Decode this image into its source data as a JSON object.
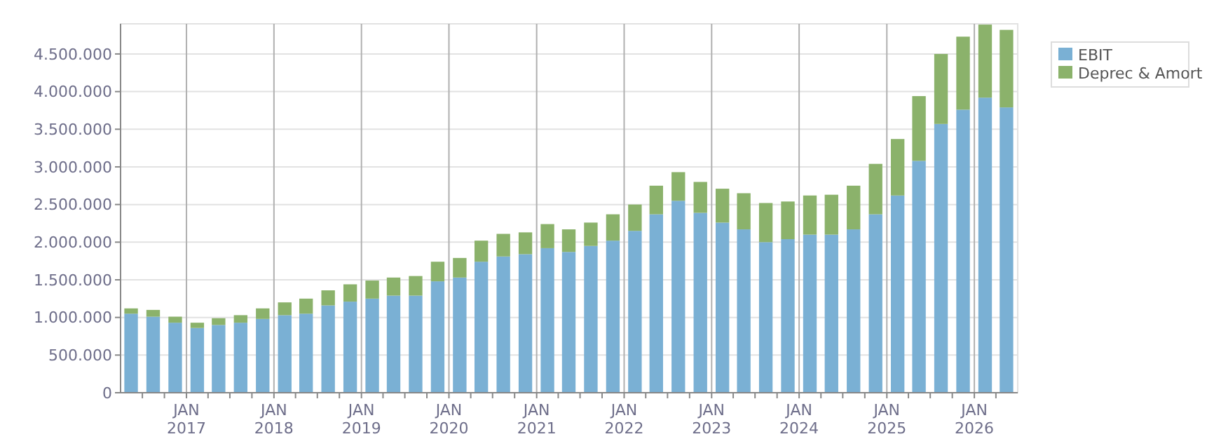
{
  "chart_data": {
    "type": "bar",
    "stacked": true,
    "x": [
      "2016-05-15",
      "2016-08-15",
      "2016-11-15",
      "2017-02-15",
      "2017-05-15",
      "2017-08-15",
      "2017-11-15",
      "2018-02-15",
      "2018-05-15",
      "2018-08-15",
      "2018-11-15",
      "2019-02-15",
      "2019-05-15",
      "2019-08-15",
      "2019-11-15",
      "2020-02-15",
      "2020-05-15",
      "2020-08-15",
      "2020-11-15",
      "2021-02-15",
      "2021-05-15",
      "2021-08-15",
      "2021-11-15",
      "2022-02-15",
      "2022-05-15",
      "2022-08-15",
      "2022-11-15",
      "2023-02-15",
      "2023-05-15",
      "2023-08-15",
      "2023-11-15",
      "2024-02-15",
      "2024-05-15",
      "2024-08-15",
      "2024-11-15",
      "2025-02-15",
      "2025-05-15",
      "2025-08-15",
      "2025-11-15",
      "2026-02-15",
      "2026-05-15"
    ],
    "series": [
      {
        "name": "EBIT",
        "color": "#7ab0d4",
        "values": [
          1050000,
          1010000,
          930000,
          860000,
          900000,
          930000,
          980000,
          1030000,
          1050000,
          1160000,
          1210000,
          1250000,
          1290000,
          1290000,
          1480000,
          1530000,
          1740000,
          1810000,
          1840000,
          1920000,
          1870000,
          1950000,
          2020000,
          2150000,
          2370000,
          2550000,
          2390000,
          2260000,
          2170000,
          2000000,
          2040000,
          2100000,
          2100000,
          2170000,
          2370000,
          2620000,
          3080000,
          3570000,
          3760000,
          3920000,
          3790000
        ]
      },
      {
        "name": "Deprec & Amort",
        "color": "#8bb26b",
        "values": [
          70000,
          90000,
          80000,
          70000,
          90000,
          100000,
          140000,
          170000,
          200000,
          200000,
          230000,
          240000,
          240000,
          260000,
          260000,
          260000,
          280000,
          300000,
          290000,
          320000,
          300000,
          310000,
          350000,
          350000,
          380000,
          380000,
          410000,
          450000,
          480000,
          520000,
          500000,
          520000,
          530000,
          580000,
          670000,
          750000,
          860000,
          930000,
          970000,
          970000,
          1030000
        ]
      }
    ],
    "xlim": [
      "2016-04-01",
      "2026-07-01"
    ],
    "xticks": [
      {
        "value": "2016-07-01",
        "label": null
      },
      {
        "value": "2016-10-01",
        "label": null
      },
      {
        "value": "2017-01-01",
        "label": "JAN\n2017"
      },
      {
        "value": "2017-04-01",
        "label": null
      },
      {
        "value": "2017-07-01",
        "label": null
      },
      {
        "value": "2017-10-01",
        "label": null
      },
      {
        "value": "2018-01-01",
        "label": "JAN\n2018"
      },
      {
        "value": "2018-04-01",
        "label": null
      },
      {
        "value": "2018-07-01",
        "label": null
      },
      {
        "value": "2018-10-01",
        "label": null
      },
      {
        "value": "2019-01-01",
        "label": "JAN\n2019"
      },
      {
        "value": "2019-04-01",
        "label": null
      },
      {
        "value": "2019-07-01",
        "label": null
      },
      {
        "value": "2019-10-01",
        "label": null
      },
      {
        "value": "2020-01-01",
        "label": "JAN\n2020"
      },
      {
        "value": "2020-04-01",
        "label": null
      },
      {
        "value": "2020-07-01",
        "label": null
      },
      {
        "value": "2020-10-01",
        "label": null
      },
      {
        "value": "2021-01-01",
        "label": "JAN\n2021"
      },
      {
        "value": "2021-04-01",
        "label": null
      },
      {
        "value": "2021-07-01",
        "label": null
      },
      {
        "value": "2021-10-01",
        "label": null
      },
      {
        "value": "2022-01-01",
        "label": "JAN\n2022"
      },
      {
        "value": "2022-04-01",
        "label": null
      },
      {
        "value": "2022-07-01",
        "label": null
      },
      {
        "value": "2022-10-01",
        "label": null
      },
      {
        "value": "2023-01-01",
        "label": "JAN\n2023"
      },
      {
        "value": "2023-04-01",
        "label": null
      },
      {
        "value": "2023-07-01",
        "label": null
      },
      {
        "value": "2023-10-01",
        "label": null
      },
      {
        "value": "2024-01-01",
        "label": "JAN\n2024"
      },
      {
        "value": "2024-04-01",
        "label": null
      },
      {
        "value": "2024-07-01",
        "label": null
      },
      {
        "value": "2024-10-01",
        "label": null
      },
      {
        "value": "2025-01-01",
        "label": "JAN\n2025"
      },
      {
        "value": "2025-04-01",
        "label": null
      },
      {
        "value": "2025-07-01",
        "label": null
      },
      {
        "value": "2025-10-01",
        "label": null
      },
      {
        "value": "2026-01-01",
        "label": "JAN\n2026"
      },
      {
        "value": "2026-04-01",
        "label": null
      }
    ],
    "ylim": [
      0,
      4900000
    ],
    "yticks": [
      {
        "value": 0,
        "label": "0"
      },
      {
        "value": 500000,
        "label": "500.000"
      },
      {
        "value": 1000000,
        "label": "1.000.000"
      },
      {
        "value": 1500000,
        "label": "1.500.000"
      },
      {
        "value": 2000000,
        "label": "2.000.000"
      },
      {
        "value": 2500000,
        "label": "2.500.000"
      },
      {
        "value": 3000000,
        "label": "3.000.000"
      },
      {
        "value": 3500000,
        "label": "3.500.000"
      },
      {
        "value": 4000000,
        "label": "4.000.000"
      },
      {
        "value": 4500000,
        "label": "4.500.000"
      }
    ],
    "grid": true,
    "legend": "top right"
  }
}
